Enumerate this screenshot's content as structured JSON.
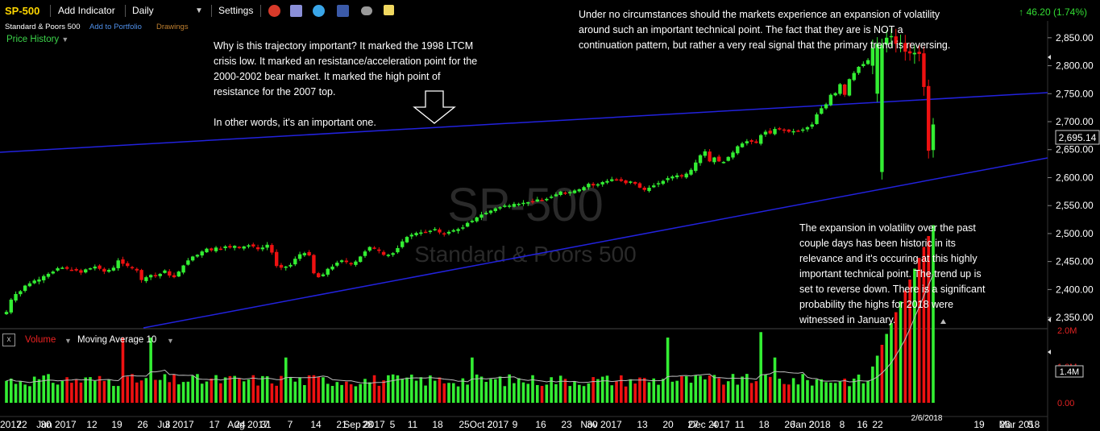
{
  "toolbar": {
    "ticker": "SP-500",
    "add_indicator": "Add Indicator",
    "period": "Daily",
    "settings": "Settings",
    "icons": [
      "alarm-icon",
      "print-icon",
      "twitter-icon",
      "facebook-icon",
      "binoculars-icon",
      "note-icon"
    ]
  },
  "subheader": {
    "name": "Standard & Poors 500",
    "add_to_portfolio": "Add to Portfolio",
    "drawings": "Drawings",
    "price_history": "Price History"
  },
  "change": {
    "value": "46.20 (1.74%)",
    "arrow": "↑"
  },
  "annotations": {
    "left": "Why is this trajectory important? It marked the 1998 LTCM\ncrisis low. It marked an resistance/acceleration point for the\n2000-2002 bear market. It marked the high point of\nresistance for the 2007 top.\n\nIn other words, it's an important one.",
    "top_right": "Under no circumstances should the markets experience an expansion of volatility\naround such an important technical point. The fact that they are is NOT a\ncontinuation pattern, but rather a very real signal that the primary trend is reversing.",
    "bottom_right": "The expansion in volatility over the past\ncouple days has been historic in its\nrelevance and it's occuring at this highly\nimportant technical point. The trend up is\nset to reverse down. There is a significant\nprobability the highs for 2018 were\nwitnessed in January."
  },
  "volume_panel": {
    "close_label": "x",
    "volume_label": "Volume",
    "ma_label": "Moving Average 10",
    "current": "1.4M",
    "tick_labels": [
      "2.0M",
      "1.0M",
      "0.00"
    ]
  },
  "chart_data": {
    "type": "candlestick",
    "title": "",
    "watermark": [
      "SP-500",
      "Standard & Poors 500"
    ],
    "x_axis_labels": [
      "2017",
      "22",
      "30",
      "Jun 2017",
      "12",
      "19",
      "26",
      "3",
      "Jul 2017",
      "17",
      "24",
      "31",
      "Aug 2017",
      "7",
      "14",
      "21",
      "28",
      "Sep 2017",
      "5",
      "11",
      "18",
      "25",
      "2",
      "Oct 2017",
      "9",
      "16",
      "23",
      "30",
      "Nov 2017",
      "13",
      "20",
      "27",
      "Dec 2017",
      "4",
      "11",
      "18",
      "26",
      "2",
      "Jan 2018",
      "8",
      "16",
      "22",
      "2/6/2018",
      "19",
      "26",
      "5",
      "Mar 2018"
    ],
    "y_ticks": [
      "2,850.00",
      "2,800.00",
      "2,750.00",
      "2,700.00",
      "2,650.00",
      "2,600.00",
      "2,550.00",
      "2,500.00",
      "2,450.00",
      "2,400.00",
      "2,350.00"
    ],
    "ylim": [
      2330,
      2880
    ],
    "last_price": "2,695.14",
    "candle_colors": {
      "up": "#33ee33",
      "down": "#ee1111"
    },
    "trendline_color": "#2222dd",
    "closes": [
      2360,
      2382,
      2392,
      2397,
      2407,
      2411,
      2416,
      2418,
      2424,
      2428,
      2432,
      2438,
      2439,
      2437,
      2435,
      2434,
      2430,
      2436,
      2438,
      2441,
      2437,
      2432,
      2435,
      2439,
      2452,
      2446,
      2442,
      2438,
      2434,
      2417,
      2422,
      2426,
      2424,
      2428,
      2434,
      2425,
      2422,
      2432,
      2443,
      2452,
      2459,
      2462,
      2468,
      2473,
      2470,
      2475,
      2473,
      2477,
      2475,
      2478,
      2474,
      2477,
      2479,
      2477,
      2472,
      2475,
      2480,
      2466,
      2442,
      2439,
      2441,
      2444,
      2455,
      2463,
      2465,
      2461,
      2429,
      2422,
      2427,
      2437,
      2441,
      2448,
      2452,
      2449,
      2445,
      2450,
      2459,
      2468,
      2476,
      2473,
      2469,
      2462,
      2462,
      2465,
      2474,
      2486,
      2494,
      2498,
      2501,
      2502,
      2503,
      2505,
      2508,
      2502,
      2499,
      2503,
      2506,
      2508,
      2511,
      2519,
      2523,
      2529,
      2534,
      2537,
      2541,
      2545,
      2547,
      2550,
      2550,
      2553,
      2553,
      2555,
      2556,
      2557,
      2561,
      2559,
      2562,
      2566,
      2570,
      2575,
      2572,
      2574,
      2577,
      2579,
      2583,
      2589,
      2586,
      2588,
      2592,
      2594,
      2597,
      2596,
      2594,
      2590,
      2593,
      2589,
      2582,
      2578,
      2582,
      2586,
      2590,
      2594,
      2599,
      2602,
      2604,
      2602,
      2607,
      2614,
      2627,
      2640,
      2647,
      2629,
      2636,
      2629,
      2628,
      2637,
      2645,
      2656,
      2661,
      2665,
      2664,
      2662,
      2676,
      2682,
      2679,
      2687,
      2687,
      2684,
      2682,
      2683,
      2684,
      2686,
      2690,
      2695,
      2713,
      2724,
      2731,
      2748,
      2751,
      2767,
      2748,
      2776,
      2787,
      2798,
      2803,
      2810,
      2832,
      2839,
      2837,
      2850,
      2853,
      2839,
      2841,
      2825,
      2822,
      2823,
      2821,
      2762,
      2648,
      2695
    ]
  }
}
